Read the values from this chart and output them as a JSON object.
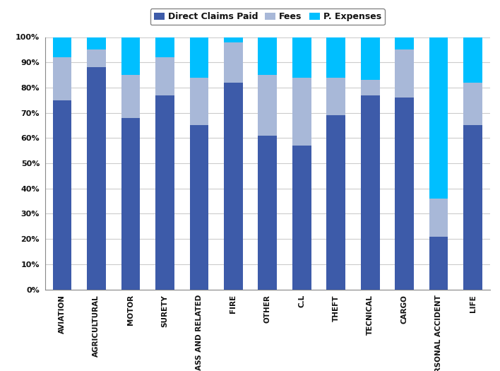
{
  "categories": [
    "AVIATION",
    "AGRICULTURAL",
    "MOTOR",
    "SURETY",
    "GLASS AND RELATED",
    "FIRE",
    "OTHER",
    "C.L",
    "THEFT",
    "TECNICAL",
    "CARGO",
    "PERSONAL ACCIDENT",
    "LIFE"
  ],
  "direct_claims_paid": [
    75,
    88,
    68,
    77,
    65,
    82,
    61,
    57,
    69,
    77,
    76,
    21,
    65
  ],
  "fees": [
    17,
    7,
    17,
    15,
    19,
    16,
    24,
    27,
    15,
    6,
    19,
    15,
    17
  ],
  "p_expenses": [
    8,
    5,
    15,
    8,
    16,
    2,
    15,
    16,
    16,
    17,
    5,
    64,
    18
  ],
  "colors": {
    "direct_claims_paid": "#3D5BA9",
    "fees": "#A8B8D8",
    "p_expenses": "#00BFFF"
  },
  "legend_labels": [
    "Direct Claims Paid",
    "Fees",
    "P. Expenses"
  ],
  "ylim": [
    0,
    100
  ],
  "background_color": "#FFFFFF",
  "grid_color": "#CCCCCC",
  "bar_width": 0.55,
  "figsize": [
    7.08,
    5.25
  ],
  "dpi": 100
}
